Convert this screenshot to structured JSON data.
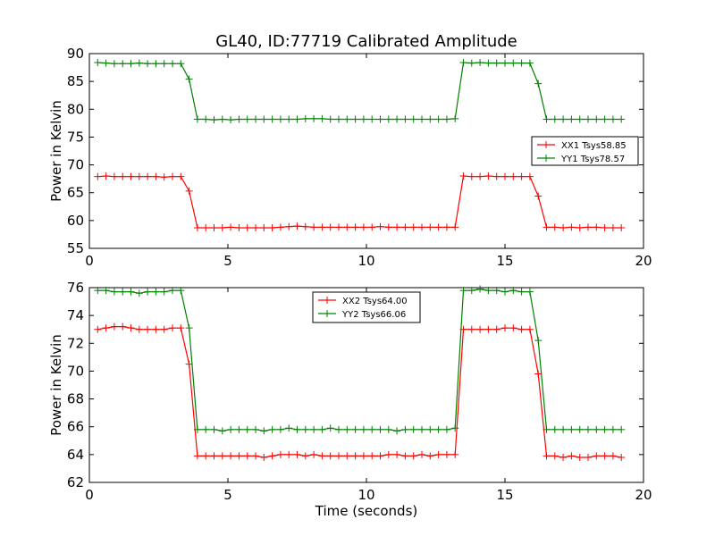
{
  "figure": {
    "title": "GL40, ID:77719 Calibrated Amplitude"
  },
  "chart_data": [
    {
      "type": "line",
      "title": "GL40, ID:77719 Calibrated Amplitude",
      "xlabel": "",
      "ylabel": "Power in Kelvin",
      "xlim": [
        0,
        20
      ],
      "ylim": [
        55,
        90
      ],
      "xticks": [
        0,
        5,
        10,
        15,
        20
      ],
      "yticks": [
        55,
        60,
        65,
        70,
        75,
        80,
        85,
        90
      ],
      "grid": false,
      "legend_position": "center-right",
      "x": [
        0.3,
        0.6,
        0.9,
        1.2,
        1.5,
        1.8,
        2.1,
        2.4,
        2.7,
        3.0,
        3.3,
        3.6,
        3.9,
        4.2,
        4.5,
        4.8,
        5.1,
        5.4,
        5.7,
        6.0,
        6.3,
        6.6,
        6.9,
        7.2,
        7.5,
        7.8,
        8.1,
        8.4,
        8.7,
        9.0,
        9.3,
        9.6,
        9.9,
        10.2,
        10.5,
        10.8,
        11.1,
        11.4,
        11.7,
        12.0,
        12.3,
        12.6,
        12.9,
        13.2,
        13.5,
        13.8,
        14.1,
        14.4,
        14.7,
        15.0,
        15.3,
        15.6,
        15.9,
        16.2,
        16.5,
        16.8,
        17.1,
        17.4,
        17.7,
        18.0,
        18.3,
        18.6,
        18.9,
        19.2
      ],
      "series": [
        {
          "name": "XX1 Tsys58.85",
          "color": "#ff0000",
          "values": [
            67.9,
            68.0,
            67.9,
            67.9,
            67.9,
            67.9,
            67.9,
            67.9,
            67.8,
            67.9,
            67.9,
            65.3,
            58.7,
            58.7,
            58.7,
            58.7,
            58.8,
            58.7,
            58.7,
            58.7,
            58.7,
            58.7,
            58.8,
            58.9,
            59.0,
            58.9,
            58.8,
            58.8,
            58.8,
            58.8,
            58.8,
            58.8,
            58.8,
            58.8,
            58.9,
            58.8,
            58.8,
            58.8,
            58.8,
            58.8,
            58.8,
            58.8,
            58.8,
            58.8,
            68.0,
            67.9,
            67.9,
            68.0,
            67.9,
            67.9,
            67.9,
            67.9,
            67.9,
            64.4,
            58.8,
            58.8,
            58.7,
            58.8,
            58.7,
            58.8,
            58.8,
            58.7,
            58.7,
            58.7
          ]
        },
        {
          "name": "YY1 Tsys78.57",
          "color": "#008000",
          "values": [
            88.4,
            88.3,
            88.2,
            88.2,
            88.2,
            88.3,
            88.2,
            88.2,
            88.2,
            88.2,
            88.2,
            85.4,
            78.2,
            78.2,
            78.1,
            78.2,
            78.1,
            78.2,
            78.2,
            78.2,
            78.2,
            78.2,
            78.2,
            78.2,
            78.2,
            78.3,
            78.3,
            78.3,
            78.2,
            78.2,
            78.2,
            78.2,
            78.2,
            78.2,
            78.2,
            78.2,
            78.2,
            78.2,
            78.2,
            78.2,
            78.2,
            78.2,
            78.2,
            78.3,
            88.4,
            88.3,
            88.4,
            88.3,
            88.3,
            88.3,
            88.3,
            88.3,
            88.3,
            84.6,
            78.2,
            78.2,
            78.2,
            78.2,
            78.2,
            78.2,
            78.2,
            78.2,
            78.2,
            78.2
          ]
        }
      ]
    },
    {
      "type": "line",
      "title": "",
      "xlabel": "Time (seconds)",
      "ylabel": "Power in Kelvin",
      "xlim": [
        0,
        20
      ],
      "ylim": [
        62,
        76
      ],
      "xticks": [
        0,
        5,
        10,
        15,
        20
      ],
      "yticks": [
        62,
        64,
        66,
        68,
        70,
        72,
        74,
        76
      ],
      "grid": false,
      "legend_position": "upper-center",
      "x": [
        0.3,
        0.6,
        0.9,
        1.2,
        1.5,
        1.8,
        2.1,
        2.4,
        2.7,
        3.0,
        3.3,
        3.6,
        3.9,
        4.2,
        4.5,
        4.8,
        5.1,
        5.4,
        5.7,
        6.0,
        6.3,
        6.6,
        6.9,
        7.2,
        7.5,
        7.8,
        8.1,
        8.4,
        8.7,
        9.0,
        9.3,
        9.6,
        9.9,
        10.2,
        10.5,
        10.8,
        11.1,
        11.4,
        11.7,
        12.0,
        12.3,
        12.6,
        12.9,
        13.2,
        13.5,
        13.8,
        14.1,
        14.4,
        14.7,
        15.0,
        15.3,
        15.6,
        15.9,
        16.2,
        16.5,
        16.8,
        17.1,
        17.4,
        17.7,
        18.0,
        18.3,
        18.6,
        18.9,
        19.2
      ],
      "series": [
        {
          "name": "XX2 Tsys64.00",
          "color": "#ff0000",
          "values": [
            73.0,
            73.1,
            73.2,
            73.2,
            73.1,
            73.0,
            73.0,
            73.0,
            73.0,
            73.1,
            73.1,
            70.5,
            63.9,
            63.9,
            63.9,
            63.9,
            63.9,
            63.9,
            63.9,
            63.9,
            63.8,
            63.9,
            64.0,
            64.0,
            64.0,
            63.9,
            64.0,
            63.9,
            63.9,
            63.9,
            63.9,
            63.9,
            63.9,
            63.9,
            63.9,
            64.0,
            64.0,
            63.9,
            63.9,
            64.0,
            63.9,
            64.0,
            64.0,
            64.0,
            73.0,
            73.0,
            73.0,
            73.0,
            73.0,
            73.1,
            73.1,
            73.0,
            73.0,
            69.8,
            63.9,
            63.9,
            63.8,
            63.9,
            63.8,
            63.8,
            63.9,
            63.9,
            63.9,
            63.8
          ]
        },
        {
          "name": "YY2 Tsys66.06",
          "color": "#008000",
          "values": [
            75.8,
            75.8,
            75.7,
            75.7,
            75.7,
            75.6,
            75.7,
            75.7,
            75.7,
            75.8,
            75.8,
            73.1,
            65.8,
            65.8,
            65.8,
            65.7,
            65.8,
            65.8,
            65.8,
            65.8,
            65.7,
            65.8,
            65.8,
            65.9,
            65.8,
            65.8,
            65.8,
            65.8,
            65.9,
            65.8,
            65.8,
            65.8,
            65.8,
            65.8,
            65.8,
            65.8,
            65.7,
            65.8,
            65.8,
            65.8,
            65.8,
            65.8,
            65.8,
            65.9,
            75.8,
            75.8,
            75.9,
            75.8,
            75.8,
            75.7,
            75.8,
            75.7,
            75.7,
            72.2,
            65.8,
            65.8,
            65.8,
            65.8,
            65.8,
            65.8,
            65.8,
            65.8,
            65.8,
            65.8
          ]
        }
      ]
    }
  ]
}
